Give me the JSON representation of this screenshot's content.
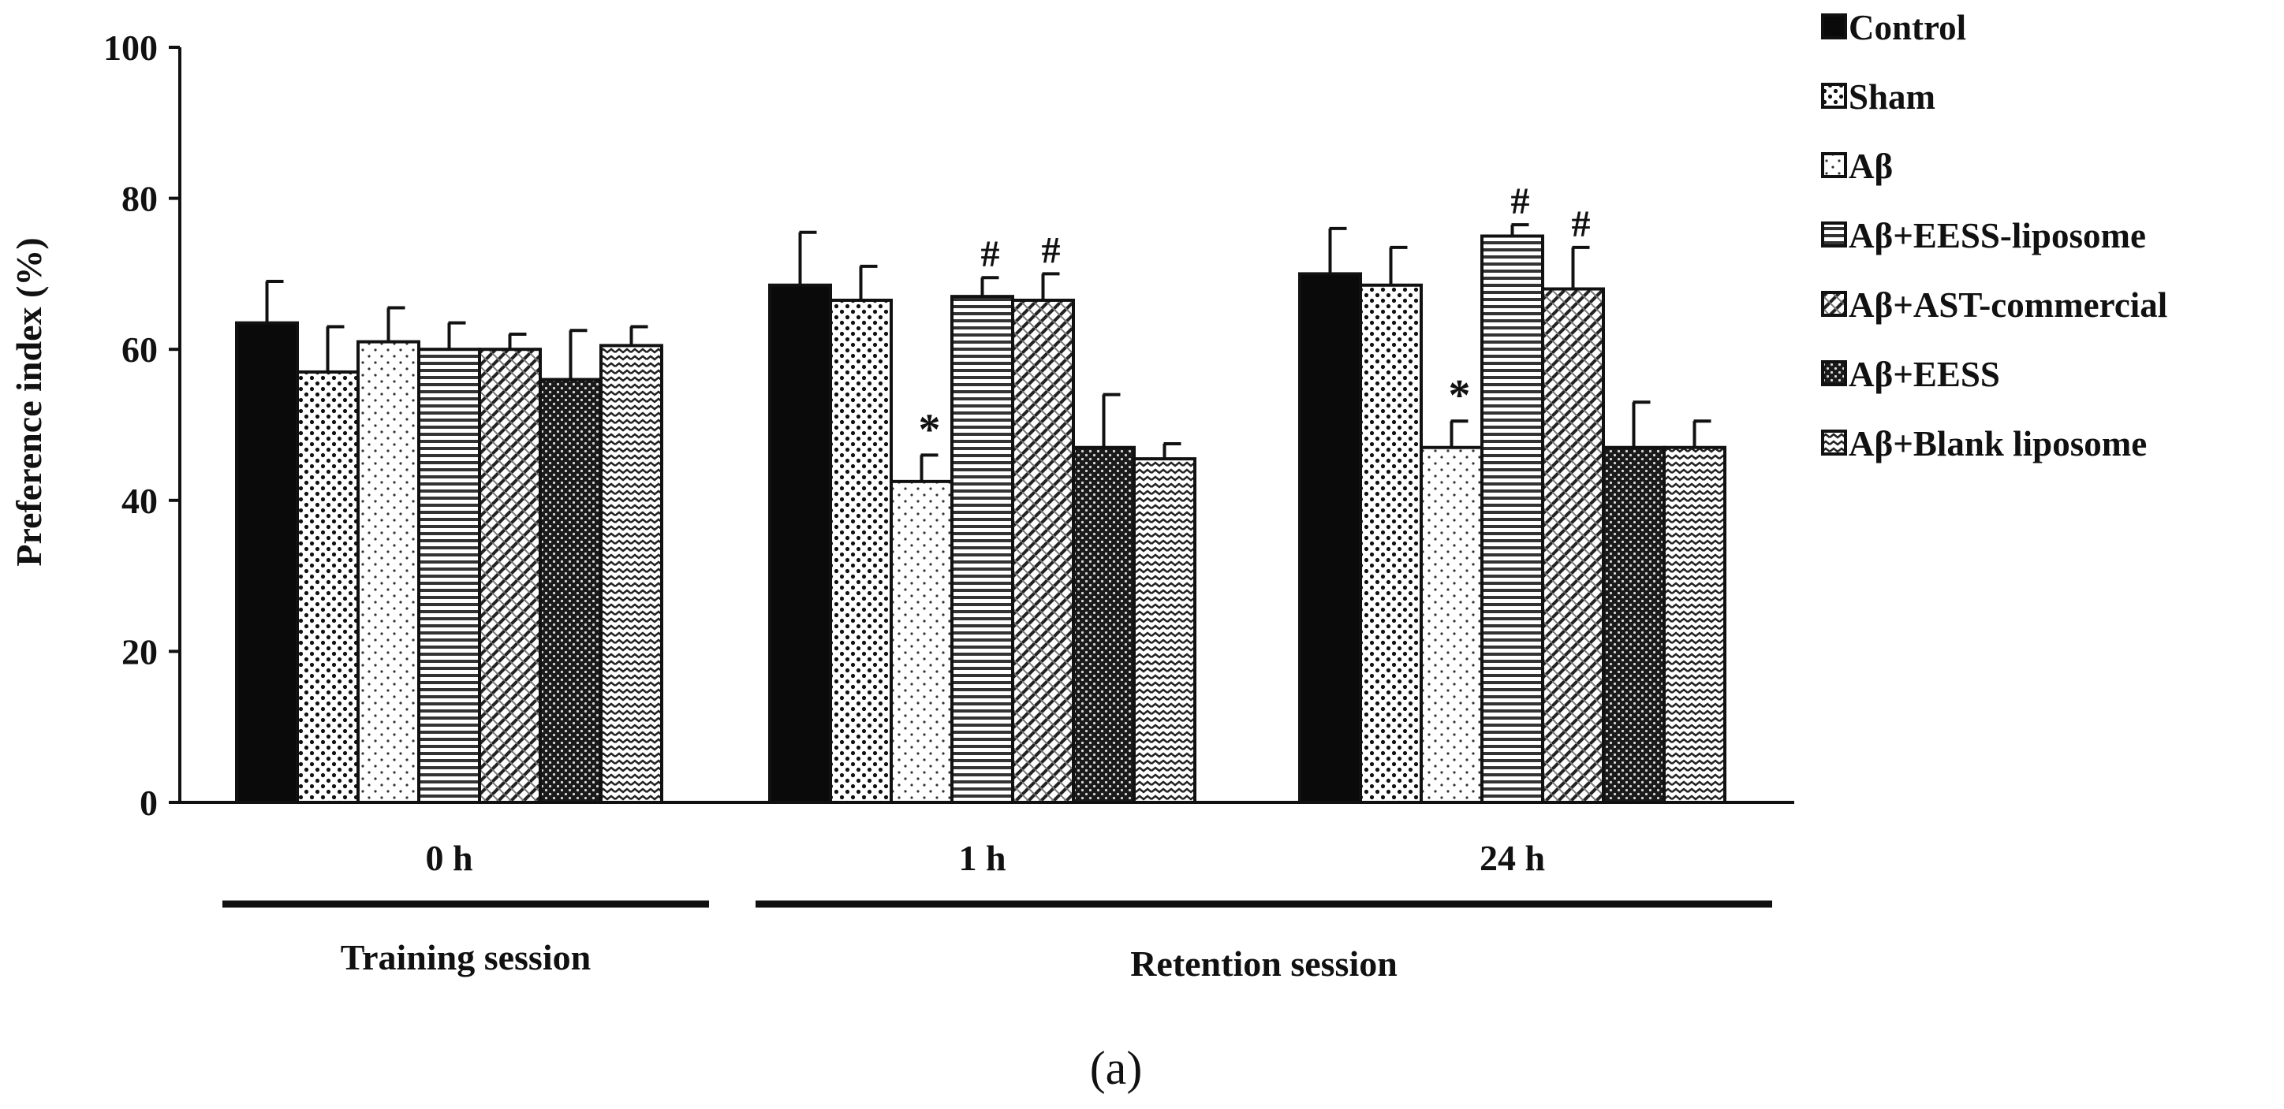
{
  "chart_data": {
    "type": "bar",
    "ylabel": "Preference index (%)",
    "ylim": [
      0,
      100
    ],
    "yticks": [
      0,
      20,
      40,
      60,
      80,
      100
    ],
    "categories": [
      "0 h",
      "1 h",
      "24 h"
    ],
    "sessions": [
      {
        "label": "Training session",
        "categories": [
          "0 h"
        ]
      },
      {
        "label": "Retention session",
        "categories": [
          "1 h",
          "24 h"
        ]
      }
    ],
    "caption": "(a)",
    "series": [
      {
        "name": "Control",
        "pattern": "solid",
        "values": [
          63.5,
          68.5,
          70
        ],
        "errors": [
          5.5,
          7,
          6
        ],
        "marks": [
          "",
          "",
          ""
        ]
      },
      {
        "name": "Sham",
        "pattern": "dots",
        "values": [
          57,
          66.5,
          68.5
        ],
        "errors": [
          6,
          4.5,
          5
        ],
        "marks": [
          "",
          "",
          ""
        ]
      },
      {
        "name": "Aβ",
        "pattern": "sparse-dots",
        "values": [
          61,
          42.5,
          47
        ],
        "errors": [
          4.5,
          3.5,
          3.5
        ],
        "marks": [
          "",
          "*",
          "*"
        ]
      },
      {
        "name": "Aβ+EESS-liposome",
        "pattern": "hlines",
        "values": [
          60,
          67,
          75
        ],
        "errors": [
          3.5,
          2.5,
          1.5
        ],
        "marks": [
          "",
          "#",
          "#"
        ]
      },
      {
        "name": "Aβ+AST-commercial",
        "pattern": "diagonal",
        "values": [
          60,
          66.5,
          68
        ],
        "errors": [
          2,
          3.5,
          5.5
        ],
        "marks": [
          "",
          "#",
          "#"
        ]
      },
      {
        "name": "Aβ+EESS",
        "pattern": "dense-dark",
        "values": [
          56,
          47,
          47
        ],
        "errors": [
          6.5,
          7,
          6
        ],
        "marks": [
          "",
          "",
          ""
        ]
      },
      {
        "name": "Aβ+Blank liposome",
        "pattern": "zigzag",
        "values": [
          60.5,
          45.5,
          47
        ],
        "errors": [
          2.5,
          2,
          3.5
        ],
        "marks": [
          "",
          "",
          ""
        ]
      }
    ]
  }
}
